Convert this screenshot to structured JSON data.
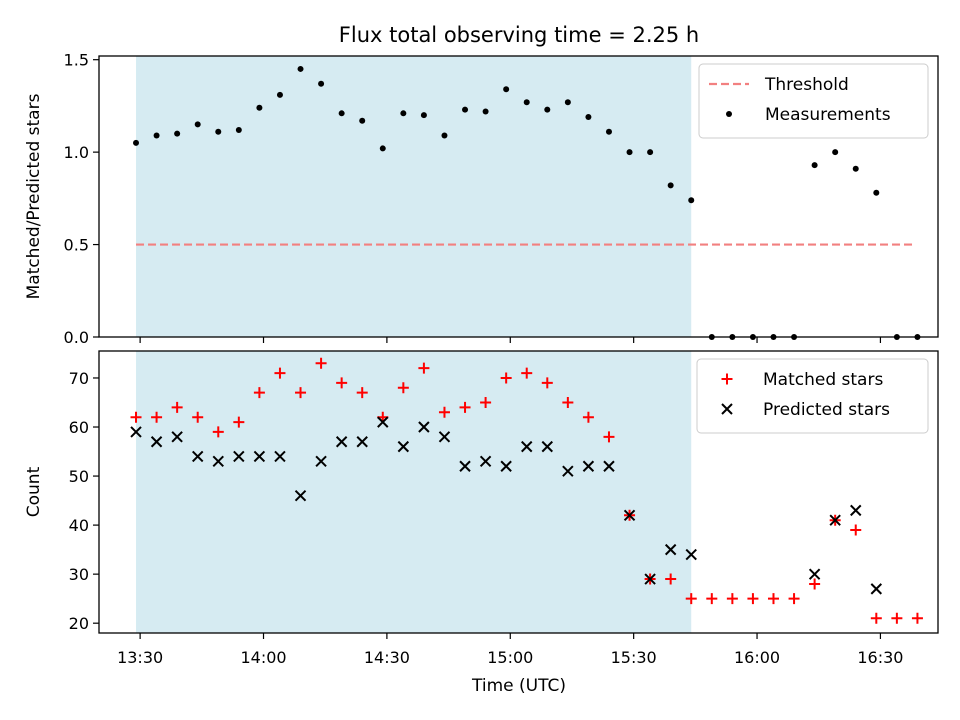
{
  "chart_data": {
    "title": "Flux total observing time = 2.25 h",
    "xlabel": "Time (UTC)",
    "x_tick_labels": [
      "13:30",
      "14:00",
      "14:30",
      "15:00",
      "15:30",
      "16:00",
      "16:30"
    ],
    "x_ticks": [
      "13:30",
      "14:00",
      "14:30",
      "15:00",
      "15:30",
      "16:00",
      "16:30"
    ],
    "xlim": [
      "13:20",
      "16:44"
    ],
    "shaded_span": [
      "13:29",
      "15:44"
    ],
    "times": [
      "13:29",
      "13:34",
      "13:39",
      "13:44",
      "13:49",
      "13:54",
      "13:59",
      "14:04",
      "14:09",
      "14:14",
      "14:19",
      "14:24",
      "14:29",
      "14:34",
      "14:39",
      "14:44",
      "14:49",
      "14:54",
      "14:59",
      "15:04",
      "15:09",
      "15:14",
      "15:19",
      "15:24",
      "15:29",
      "15:34",
      "15:39",
      "15:44",
      "15:49",
      "15:54",
      "15:59",
      "16:04",
      "16:09",
      "16:14",
      "16:19",
      "16:24",
      "16:29",
      "16:34",
      "16:39"
    ],
    "panels": [
      {
        "type": "scatter",
        "ylabel": "Matched/Predicted stars",
        "ylim": [
          0,
          1.52
        ],
        "y_ticks": [
          0.0,
          0.5,
          1.0,
          1.5
        ],
        "y_tick_labels": [
          "0.0",
          "0.5",
          "1.0",
          "1.5"
        ],
        "legend_position": "top-right",
        "threshold": {
          "name": "Threshold",
          "value": 0.5,
          "x_range": [
            "13:29",
            "16:38"
          ],
          "color": "#f28080"
        },
        "series": [
          {
            "name": "Measurements",
            "color": "#000000",
            "marker": "dot",
            "values": [
              1.05,
              1.09,
              1.1,
              1.15,
              1.11,
              1.12,
              1.24,
              1.31,
              1.45,
              1.37,
              1.21,
              1.17,
              1.02,
              1.21,
              1.2,
              1.09,
              1.23,
              1.22,
              1.34,
              1.27,
              1.23,
              1.27,
              1.19,
              1.11,
              1.0,
              1.0,
              0.82,
              0.74,
              0.0,
              0.0,
              0.0,
              0.0,
              0.0,
              0.93,
              1.0,
              0.91,
              0.78,
              0.0,
              0.0
            ]
          }
        ]
      },
      {
        "type": "scatter",
        "ylabel": "Count",
        "ylim": [
          18,
          75.5
        ],
        "y_ticks": [
          20,
          30,
          40,
          50,
          60,
          70
        ],
        "y_tick_labels": [
          "20",
          "30",
          "40",
          "50",
          "60",
          "70"
        ],
        "legend_position": "top-right",
        "series": [
          {
            "name": "Matched stars",
            "color": "#ff0000",
            "marker": "plus",
            "values": [
              62,
              62,
              64,
              62,
              59,
              61,
              67,
              71,
              67,
              73,
              69,
              67,
              62,
              68,
              72,
              63,
              64,
              65,
              70,
              71,
              69,
              65,
              62,
              58,
              42,
              29,
              29,
              25,
              25,
              25,
              25,
              25,
              25,
              28,
              41,
              39,
              21,
              21,
              21
            ]
          },
          {
            "name": "Predicted stars",
            "color": "#000000",
            "marker": "x",
            "values": [
              59,
              57,
              58,
              54,
              53,
              54,
              54,
              54,
              46,
              53,
              57,
              57,
              61,
              56,
              60,
              58,
              52,
              53,
              52,
              56,
              56,
              51,
              52,
              52,
              42,
              29,
              35,
              34,
              null,
              null,
              null,
              null,
              null,
              30,
              41,
              43,
              27,
              null,
              null
            ]
          }
        ]
      }
    ],
    "colors": {
      "shade": "#add8e6",
      "shade_alpha": 0.5
    }
  }
}
